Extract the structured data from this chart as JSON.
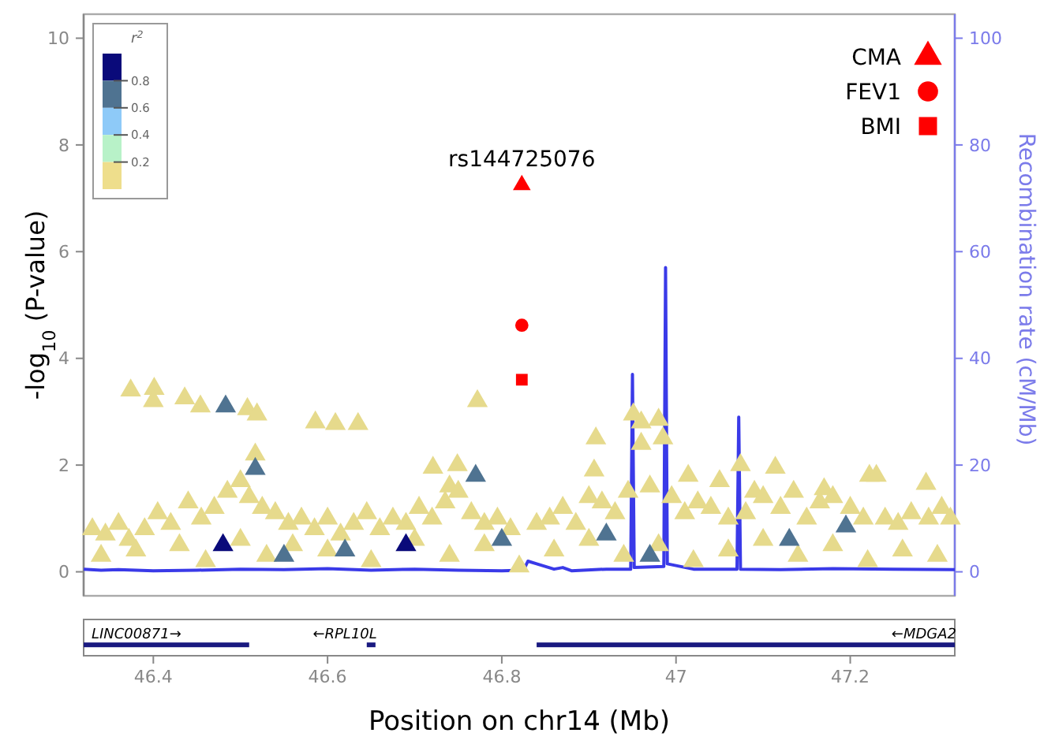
{
  "chart_data": [
    {
      "type": "scatter",
      "ylabel": "-log$_{10}$ (P-value)",
      "y2label": "Recombination rate (cM/Mb)",
      "xlim": [
        46.32,
        47.32
      ],
      "ylim": [
        -0.45,
        10.45
      ],
      "yticks": [
        0,
        2,
        4,
        6,
        8,
        10
      ],
      "y2lim": [
        -4.5,
        104.5
      ],
      "y2ticks": [
        0,
        20,
        40,
        60,
        80,
        100
      ],
      "tick_labels": "y",
      "legend": "top right",
      "grid": false,
      "annotations": [
        {
          "text": "rs144725076",
          "x": 46.823,
          "y": 7.25
        },
        "r$^{2}$",
        "0.8",
        "0.6",
        "0.4",
        "0.2"
      ],
      "series": [
        {
          "type": "line",
          "axis": "y2",
          "color": "#3a3ae8",
          "x": [
            46.32,
            46.34,
            46.36,
            46.4,
            46.45,
            46.5,
            46.55,
            46.6,
            46.65,
            46.7,
            46.75,
            46.8,
            46.825,
            46.83,
            46.84,
            46.86,
            46.87,
            46.88,
            46.92,
            46.948,
            46.95,
            46.952,
            46.986,
            46.988,
            46.99,
            47.02,
            47.07,
            47.072,
            47.074,
            47.12,
            47.18,
            47.25,
            47.32
          ],
          "values": [
            0.5,
            0.3,
            0.4,
            0.2,
            0.3,
            0.5,
            0.4,
            0.6,
            0.3,
            0.5,
            0.3,
            0.2,
            0.3,
            2,
            1.5,
            0.5,
            0.8,
            0.2,
            0.5,
            0.5,
            37,
            0.8,
            1,
            57,
            1.5,
            0.5,
            0.5,
            29,
            0.5,
            0.4,
            0.6,
            0.5,
            0.4
          ]
        },
        {
          "type": "scatter",
          "marker": "triangle",
          "x": [
            46.374,
            46.401,
            46.4,
            46.436,
            46.454,
            46.483,
            46.508,
            46.519,
            46.586,
            46.609,
            46.635,
            46.772,
            46.517,
            46.517,
            46.721,
            46.749,
            46.77,
            46.74,
            46.908,
            46.906,
            46.951,
            46.96,
            46.98,
            46.985,
            46.96,
            47.014,
            47.05,
            47.074,
            47.114,
            47.09,
            47.17,
            47.222,
            47.23,
            47.287,
            47.195,
            46.33,
            46.345,
            46.36,
            46.372,
            46.39,
            46.405,
            46.42,
            46.44,
            46.455,
            46.47,
            46.485,
            46.5,
            46.51,
            46.525,
            46.54,
            46.555,
            46.57,
            46.585,
            46.6,
            46.615,
            46.63,
            46.645,
            46.66,
            46.675,
            46.69,
            46.705,
            46.72,
            46.735,
            46.75,
            46.765,
            46.78,
            46.795,
            46.81,
            46.84,
            46.855,
            46.87,
            46.885,
            46.9,
            46.915,
            46.93,
            46.945,
            46.97,
            46.995,
            47.01,
            47.025,
            47.04,
            47.06,
            47.08,
            47.1,
            47.12,
            47.135,
            47.15,
            47.165,
            47.18,
            47.2,
            47.215,
            47.24,
            47.255,
            47.27,
            47.29,
            47.305,
            47.315,
            46.34,
            46.38,
            46.43,
            46.46,
            46.5,
            46.53,
            46.56,
            46.6,
            46.65,
            46.7,
            46.74,
            46.78,
            46.82,
            46.86,
            46.9,
            46.94,
            46.98,
            47.02,
            47.06,
            47.1,
            47.14,
            47.18,
            47.22,
            47.26,
            47.3,
            46.48,
            46.55,
            46.62,
            46.69,
            46.8,
            46.92,
            46.97,
            47.13
          ],
          "values": [
            3.4,
            3.43,
            3.2,
            3.25,
            3.1,
            3.1,
            3.05,
            2.95,
            2.8,
            2.77,
            2.77,
            3.2,
            2.2,
            1.93,
            1.95,
            2,
            1.8,
            1.6,
            2.5,
            1.9,
            2.95,
            2.8,
            2.85,
            2.5,
            2.4,
            1.8,
            1.7,
            2,
            1.95,
            1.5,
            1.55,
            1.8,
            1.8,
            1.65,
            0.85,
            0.8,
            0.7,
            0.9,
            0.6,
            0.8,
            1.1,
            0.9,
            1.3,
            1,
            1.2,
            1.5,
            1.7,
            1.4,
            1.2,
            1.1,
            0.9,
            1,
            0.8,
            1,
            0.7,
            0.9,
            1.1,
            0.8,
            1,
            0.9,
            1.2,
            1,
            1.3,
            1.5,
            1.1,
            0.9,
            1,
            0.8,
            0.9,
            1,
            1.2,
            0.9,
            1.4,
            1.3,
            1.1,
            1.5,
            1.6,
            1.4,
            1.1,
            1.3,
            1.2,
            1,
            1.1,
            1.4,
            1.2,
            1.5,
            1,
            1.3,
            1.4,
            1.2,
            1,
            1,
            0.9,
            1.1,
            1,
            1.2,
            1,
            0.3,
            0.4,
            0.5,
            0.2,
            0.6,
            0.3,
            0.5,
            0.4,
            0.2,
            0.6,
            0.3,
            0.5,
            0.1,
            0.4,
            0.6,
            0.3,
            0.5,
            0.2,
            0.4,
            0.6,
            0.3,
            0.5,
            0.2,
            0.4,
            0.3,
            0.5,
            0.3,
            0.4,
            0.5,
            0.6,
            0.7,
            0.3,
            0.6
          ],
          "colors": [
            "#e6da8c",
            "#e6da8c",
            "#e6da8c",
            "#e6da8c",
            "#e6da8c",
            "#4f7391",
            "#e6da8c",
            "#e6da8c",
            "#e6da8c",
            "#e6da8c",
            "#e6da8c",
            "#e6da8c",
            "#e6da8c",
            "#4f7391",
            "#e6da8c",
            "#e6da8c",
            "#4f7391",
            "#e6da8c",
            "#e6da8c",
            "#e6da8c",
            "#e6da8c",
            "#e6da8c",
            "#e6da8c",
            "#e6da8c",
            "#e6da8c",
            "#e6da8c",
            "#e6da8c",
            "#e6da8c",
            "#e6da8c",
            "#e6da8c",
            "#e6da8c",
            "#e6da8c",
            "#e6da8c",
            "#e6da8c",
            "#4f7391",
            "#e6da8c",
            "#e6da8c",
            "#e6da8c",
            "#e6da8c",
            "#e6da8c",
            "#e6da8c",
            "#e6da8c",
            "#e6da8c",
            "#e6da8c",
            "#e6da8c",
            "#e6da8c",
            "#e6da8c",
            "#e6da8c",
            "#e6da8c",
            "#e6da8c",
            "#e6da8c",
            "#e6da8c",
            "#e6da8c",
            "#e6da8c",
            "#e6da8c",
            "#e6da8c",
            "#e6da8c",
            "#e6da8c",
            "#e6da8c",
            "#e6da8c",
            "#e6da8c",
            "#e6da8c",
            "#e6da8c",
            "#e6da8c",
            "#e6da8c",
            "#e6da8c",
            "#e6da8c",
            "#e6da8c",
            "#e6da8c",
            "#e6da8c",
            "#e6da8c",
            "#e6da8c",
            "#e6da8c",
            "#e6da8c",
            "#e6da8c",
            "#e6da8c",
            "#e6da8c",
            "#e6da8c",
            "#e6da8c",
            "#e6da8c",
            "#e6da8c",
            "#e6da8c",
            "#e6da8c",
            "#e6da8c",
            "#e6da8c",
            "#e6da8c",
            "#e6da8c",
            "#e6da8c",
            "#e6da8c",
            "#e6da8c",
            "#e6da8c",
            "#e6da8c",
            "#e6da8c",
            "#e6da8c",
            "#e6da8c",
            "#e6da8c",
            "#e6da8c",
            "#e6da8c",
            "#e6da8c",
            "#e6da8c",
            "#e6da8c",
            "#e6da8c",
            "#e6da8c",
            "#e6da8c",
            "#e6da8c",
            "#e6da8c",
            "#e6da8c",
            "#e6da8c",
            "#e6da8c",
            "#e6da8c",
            "#e6da8c",
            "#e6da8c",
            "#e6da8c",
            "#e6da8c",
            "#e6da8c",
            "#e6da8c",
            "#e6da8c",
            "#e6da8c",
            "#e6da8c",
            "#e6da8c",
            "#e6da8c",
            "#e6da8c",
            "#0a0a7a",
            "#4f7391",
            "#4f7391",
            "#0a0a7a",
            "#4f7391",
            "#4f7391",
            "#4f7391",
            "#4f7391"
          ]
        },
        {
          "type": "scatter",
          "name": "CMA",
          "marker": "triangle",
          "color": "#ff0000",
          "x": [
            46.823
          ],
          "values": [
            7.25
          ]
        },
        {
          "type": "scatter",
          "name": "FEV1",
          "marker": "circle",
          "color": "#ff0000",
          "x": [
            46.823
          ],
          "values": [
            4.62
          ]
        },
        {
          "type": "scatter",
          "name": "BMI",
          "marker": "square",
          "color": "#ff0000",
          "x": [
            46.823
          ],
          "values": [
            3.6
          ]
        }
      ]
    },
    {
      "type": "bar",
      "orientation": "horizontal",
      "categories": [
        null
      ],
      "xlabel": "Position on chr14 (Mb)",
      "xlim": [
        46.32,
        47.32
      ],
      "xticks": [
        46.4,
        46.6,
        46.8,
        47,
        47.2
      ],
      "tick_labels": "x",
      "series": [
        {
          "name": "LINC00871→",
          "color": "#1a1a80",
          "base": [
            46.32
          ],
          "values": [
            0.19
          ]
        },
        {
          "name": "←RPL10L",
          "color": "#1a1a80",
          "base": [
            46.645
          ],
          "values": [
            0.01
          ]
        },
        {
          "name": "←MDGA2",
          "color": "#1a1a80",
          "base": [
            46.84
          ],
          "values": [
            0.48
          ]
        }
      ]
    }
  ]
}
